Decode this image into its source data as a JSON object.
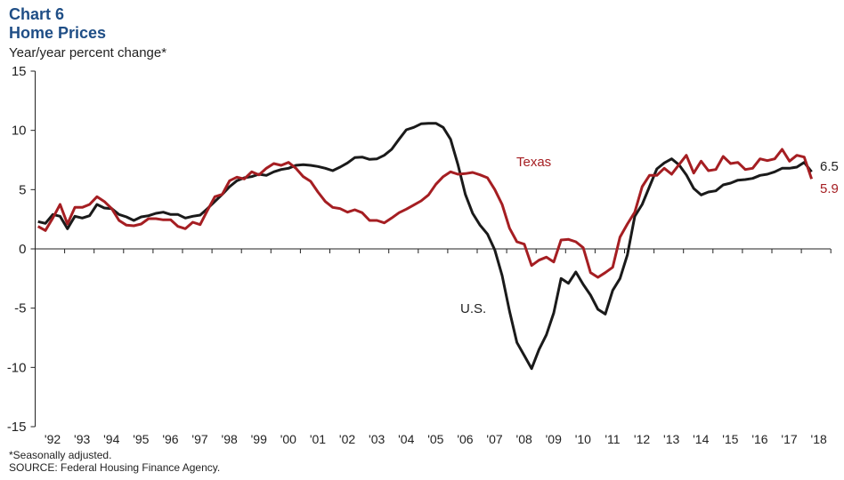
{
  "header": {
    "chart_number": "Chart 6",
    "title": "Home Prices",
    "subtitle": "Year/year percent change*"
  },
  "footer": {
    "note": "*Seasonally adjusted.",
    "source": "SOURCE: Federal Housing Finance Agency."
  },
  "chart_data": {
    "type": "line",
    "title": "Home Prices",
    "ylabel": "Year/year percent change*",
    "xlabel": "",
    "ylim": [
      -15,
      15
    ],
    "yticks": [
      "15",
      "10",
      "5",
      "0",
      "-5",
      "-10",
      "-15"
    ],
    "xticks": [
      "'92",
      "'93",
      "'94",
      "'95",
      "'96",
      "'97",
      "'98",
      "'99",
      "'00",
      "'01",
      "'02",
      "'03",
      "'04",
      "'05",
      "'06",
      "'07",
      "'08",
      "'09",
      "'10",
      "'11",
      "'12",
      "'13",
      "'14",
      "'15",
      "'16",
      "'17",
      "'18"
    ],
    "x_frequency": "quarterly",
    "x_range": [
      "1992Q1",
      "2018Q2"
    ],
    "grid": false,
    "legend": "inline labels",
    "series": [
      {
        "name": "U.S.",
        "color": "#1a1a1a",
        "last_value_label": "6.5",
        "values": [
          2.3,
          2.15,
          2.9,
          2.75,
          1.7,
          2.75,
          2.6,
          2.8,
          3.75,
          3.45,
          3.4,
          2.9,
          2.7,
          2.4,
          2.7,
          2.8,
          3.0,
          3.1,
          2.9,
          2.9,
          2.6,
          2.75,
          2.85,
          3.4,
          4.0,
          4.6,
          5.25,
          5.75,
          6.0,
          6.1,
          6.3,
          6.2,
          6.5,
          6.7,
          6.8,
          7.05,
          7.1,
          7.05,
          6.95,
          6.8,
          6.6,
          6.9,
          7.25,
          7.7,
          7.75,
          7.55,
          7.6,
          7.9,
          8.4,
          9.25,
          10.05,
          10.25,
          10.55,
          10.6,
          10.6,
          10.25,
          9.25,
          7.1,
          4.6,
          3.0,
          2.0,
          1.25,
          -0.1,
          -2.25,
          -5.25,
          -7.9,
          -9.0,
          -10.1,
          -8.5,
          -7.25,
          -5.4,
          -2.5,
          -2.9,
          -1.95,
          -3.0,
          -3.9,
          -5.1,
          -5.5,
          -3.5,
          -2.5,
          -0.5,
          2.75,
          3.75,
          5.25,
          6.75,
          7.25,
          7.6,
          7.1,
          6.25,
          5.1,
          4.55,
          4.8,
          4.9,
          5.4,
          5.55,
          5.8,
          5.85,
          5.95,
          6.2,
          6.3,
          6.5,
          6.8,
          6.8,
          6.9,
          7.3,
          6.5
        ]
      },
      {
        "name": "Texas",
        "color": "#A51E22",
        "last_value_label": "5.9",
        "values": [
          1.9,
          1.55,
          2.6,
          3.75,
          2.1,
          3.5,
          3.5,
          3.75,
          4.4,
          4.0,
          3.4,
          2.4,
          2.0,
          1.95,
          2.1,
          2.55,
          2.55,
          2.45,
          2.45,
          1.9,
          1.7,
          2.25,
          2.05,
          3.25,
          4.4,
          4.6,
          5.75,
          6.05,
          5.9,
          6.5,
          6.25,
          6.8,
          7.2,
          7.05,
          7.3,
          6.8,
          6.1,
          5.7,
          4.8,
          4.0,
          3.5,
          3.4,
          3.1,
          3.3,
          3.05,
          2.4,
          2.4,
          2.2,
          2.6,
          3.05,
          3.35,
          3.7,
          4.05,
          4.55,
          5.45,
          6.1,
          6.5,
          6.3,
          6.35,
          6.45,
          6.25,
          6.0,
          5.0,
          3.75,
          1.75,
          0.6,
          0.4,
          -1.4,
          -0.95,
          -0.7,
          -1.1,
          0.75,
          0.8,
          0.6,
          0.1,
          -2.0,
          -2.4,
          -2.0,
          -1.55,
          1.0,
          2.1,
          3.1,
          5.25,
          6.2,
          6.2,
          6.8,
          6.3,
          7.1,
          7.9,
          6.4,
          7.4,
          6.6,
          6.7,
          7.8,
          7.2,
          7.3,
          6.7,
          6.8,
          7.6,
          7.45,
          7.6,
          8.4,
          7.4,
          7.9,
          7.75,
          5.9
        ]
      }
    ]
  }
}
